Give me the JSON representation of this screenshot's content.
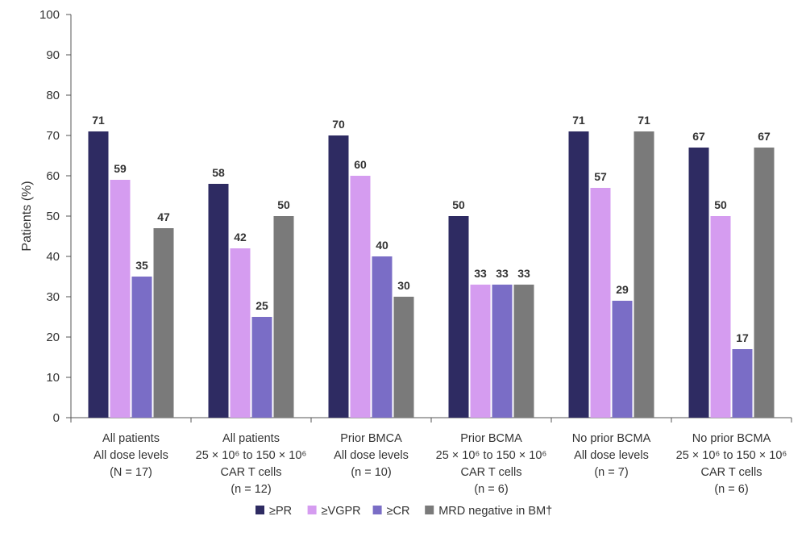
{
  "chart_data": {
    "type": "bar",
    "ylabel": "Patients (%)",
    "ylim": [
      0,
      100
    ],
    "yticks": [
      0,
      10,
      20,
      30,
      40,
      50,
      60,
      70,
      80,
      90,
      100
    ],
    "grid": false,
    "legend_position": "bottom-center",
    "categories": [
      [
        "All patients",
        "All dose levels",
        "(N = 17)"
      ],
      [
        "All patients",
        "25 × 10⁶ to 150 × 10⁶",
        "CAR T cells",
        "(n = 12)"
      ],
      [
        "Prior BMCA",
        "All dose levels",
        "(n = 10)"
      ],
      [
        "Prior BCMA",
        "25 × 10⁶ to 150 × 10⁶",
        "CAR T cells",
        "(n = 6)"
      ],
      [
        "No prior BCMA",
        "All dose levels",
        "(n = 7)"
      ],
      [
        "No prior BCMA",
        "25 × 10⁶ to 150 × 10⁶",
        "CAR T cells",
        "(n = 6)"
      ]
    ],
    "series": [
      {
        "name": "≥PR",
        "color": "#2e2b62",
        "values": [
          71,
          58,
          70,
          50,
          71,
          67
        ]
      },
      {
        "name": "≥VGPR",
        "color": "#d59cf0",
        "values": [
          59,
          42,
          60,
          33,
          57,
          50
        ]
      },
      {
        "name": "≥CR",
        "color": "#7a6dc6",
        "values": [
          35,
          25,
          40,
          33,
          29,
          17
        ]
      },
      {
        "name": "MRD negative in BM†",
        "color": "#7a7a7a",
        "values": [
          47,
          50,
          30,
          33,
          71,
          67
        ]
      }
    ]
  }
}
